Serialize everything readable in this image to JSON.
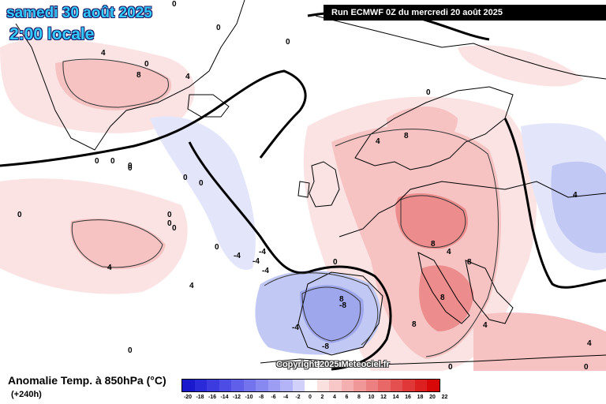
{
  "header": {
    "date": "samedi 30 août 2025",
    "time": "2:00 locale",
    "run": "Run ECMWF 0Z du mercredi 20 août 2025"
  },
  "copyright": "Copyright 2025 Meteociel.fr",
  "legend": {
    "title": "Anomalie Temp. à 850hPa (°C)",
    "lead": "(+240h)",
    "ticks": [
      "-20",
      "-18",
      "-16",
      "-14",
      "-12",
      "-10",
      "-8",
      "-6",
      "-4",
      "-2",
      "0",
      "2",
      "4",
      "6",
      "8",
      "10",
      "12",
      "14",
      "16",
      "18",
      "20",
      "22"
    ],
    "colors": [
      "#1a1acc",
      "#2a2ad9",
      "#3b3be0",
      "#4d4de6",
      "#5f5fea",
      "#7373ee",
      "#8888f1",
      "#9d9df4",
      "#b3b3f7",
      "#d0d0fa",
      "#ffffff",
      "#fbe0e0",
      "#f8c8c8",
      "#f4b0b0",
      "#f09898",
      "#ec8080",
      "#e86868",
      "#e45050",
      "#e03838",
      "#dc2020",
      "#d80808"
    ]
  },
  "map": {
    "contour_labels": [
      "0",
      "0",
      "0",
      "4",
      "8",
      "0",
      "4",
      "0",
      "0",
      "0",
      "0",
      "0",
      "0",
      "0",
      "0",
      "4",
      "4",
      "-4",
      "-4",
      "-4",
      "0",
      "4",
      "8",
      "-8",
      "-4",
      "-8",
      "0",
      "8",
      "8",
      "8",
      "4",
      "8",
      "4",
      "0",
      "0",
      "4",
      "4",
      "0",
      "0",
      "-4",
      "8",
      "0",
      "0"
    ],
    "colors": {
      "warm_light": "#fbe3e3",
      "warm_mid": "#f6c2c2",
      "warm_strong": "#ec8c8c",
      "cold_light": "#e3e6fb",
      "cold_mid": "#c2c8f4",
      "cold_strong": "#9ea6ec",
      "coast": "#000000"
    }
  }
}
